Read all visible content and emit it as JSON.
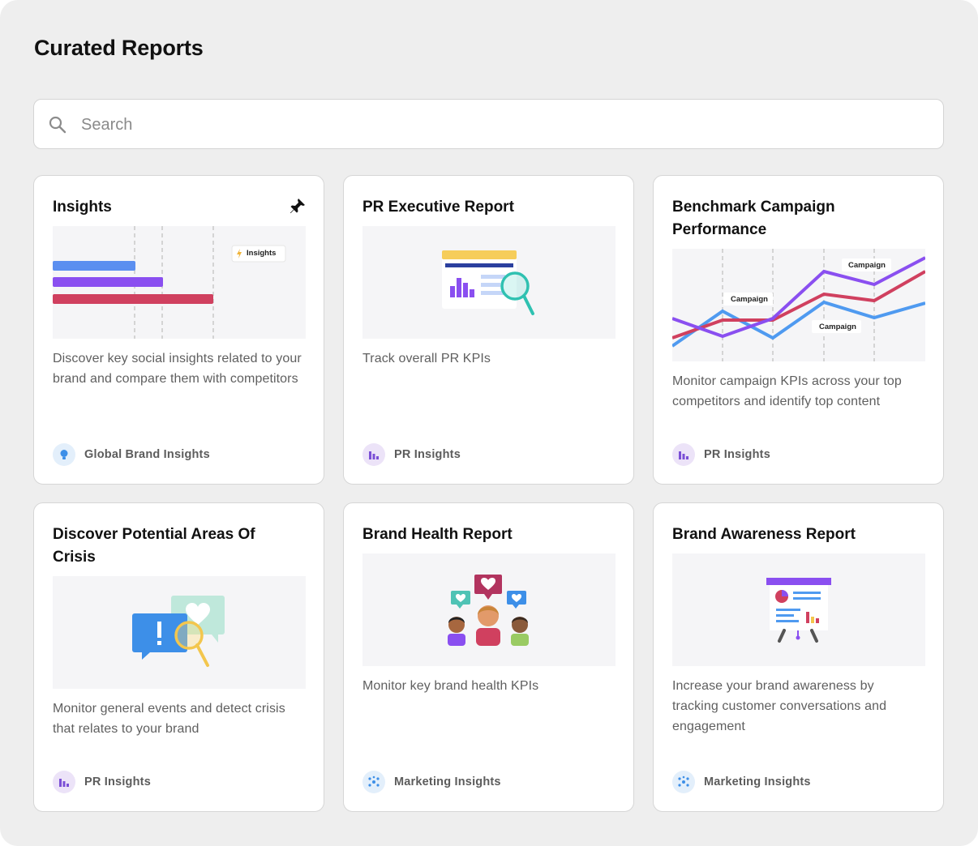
{
  "page": {
    "title": "Curated Reports"
  },
  "search": {
    "placeholder": "Search",
    "value": ""
  },
  "colors": {
    "panel_bg": "#eeeeee",
    "card_bg": "#ffffff",
    "accent_blue": "#4f9af0",
    "accent_purple": "#8a4ff0",
    "accent_red": "#d0405f"
  },
  "cards": [
    {
      "title": "Insights",
      "pinned": true,
      "thumb_tag": "Insights",
      "description": "Discover key social insights related to your brand and compare them with competitors",
      "category": "Global Brand Insights",
      "category_icon": "lightbulb-icon"
    },
    {
      "title": "PR Executive Report",
      "description": "Track overall PR KPIs",
      "category": "PR Insights",
      "category_icon": "bar-chart-icon"
    },
    {
      "title": "Benchmark Campaign Performance",
      "thumb_tags": [
        "Campaign",
        "Campaign",
        "Campaign"
      ],
      "description": "Monitor campaign KPIs across your top competitors and identify top content",
      "category": "PR Insights",
      "category_icon": "bar-chart-icon"
    },
    {
      "title": "Discover Potential Areas Of Crisis",
      "description": "Monitor general events and detect crisis that relates to your brand",
      "category": "PR Insights",
      "category_icon": "bar-chart-icon"
    },
    {
      "title": "Brand Health Report",
      "description": "Monitor key brand health KPIs",
      "category": "Marketing Insights",
      "category_icon": "network-icon"
    },
    {
      "title": "Brand Awareness Report",
      "description": "Increase your brand awareness by tracking customer conversations and engagement",
      "category": "Marketing Insights",
      "category_icon": "network-icon"
    }
  ]
}
